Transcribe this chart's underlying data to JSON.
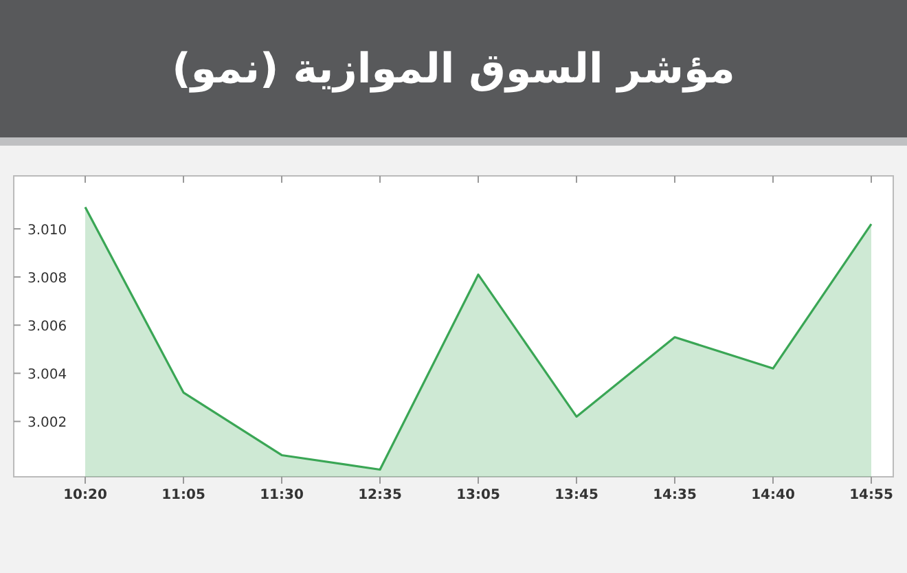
{
  "chart_data": {
    "type": "area",
    "title": "مؤشر السوق الموازية (نمو)",
    "categories": [
      "10:20",
      "11:05",
      "11:30",
      "12:35",
      "13:05",
      "13:45",
      "14:35",
      "14:40",
      "14:55"
    ],
    "series": [
      {
        "color": "#3aa655",
        "values": [
          3010.9,
          3003.2,
          3000.6,
          3000.0,
          3008.1,
          3002.2,
          3005.5,
          3004.2,
          3010.2
        ]
      }
    ],
    "ylim": [
      2999.7,
      3012.2
    ],
    "yticks": [
      {
        "value": 3002,
        "label": "3.002"
      },
      {
        "value": 3004,
        "label": "3.004"
      },
      {
        "value": 3006,
        "label": "3.006"
      },
      {
        "value": 3008,
        "label": "3.008"
      },
      {
        "value": 3010,
        "label": "3.010"
      }
    ],
    "grid": false,
    "marker": "none",
    "line_style": "solid"
  }
}
